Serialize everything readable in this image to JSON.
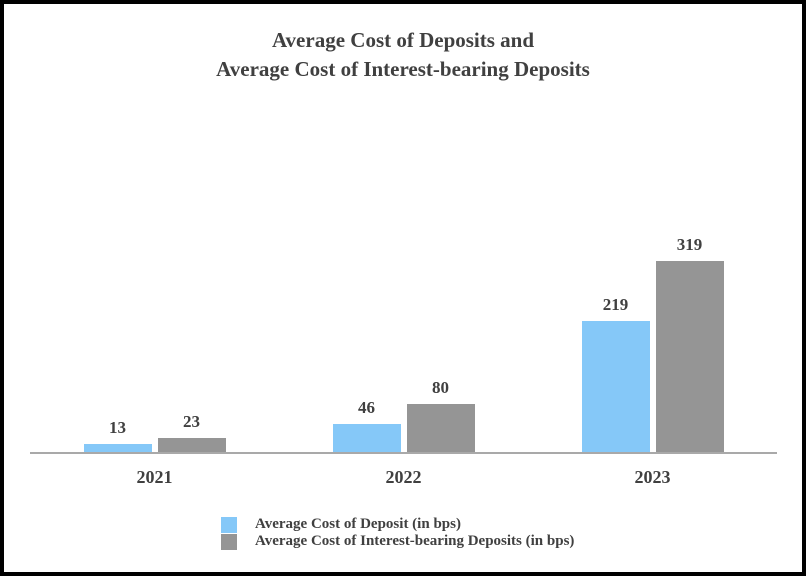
{
  "page": {
    "background": "#ffffff",
    "border_color": "#000000",
    "text_color": "#404040"
  },
  "chart_data": {
    "type": "bar",
    "title": "Average Cost of Deposits and Average Cost of Interest-bearing Deposits",
    "title_lines": [
      "Average Cost of Deposits and",
      "Average Cost of Interest-bearing Deposits"
    ],
    "categories": [
      "2021",
      "2022",
      "2023"
    ],
    "series": [
      {
        "key": "avg-cost-deposit",
        "name": "Average Cost of Deposit (in bps)",
        "color": "#85C8F8",
        "values": [
          13,
          46,
          219
        ]
      },
      {
        "key": "avg-cost-interest-bearing-deposits",
        "name": "Average Cost of Interest-bearing Deposits (in bps)",
        "color": "#959595",
        "values": [
          23,
          80,
          319
        ]
      }
    ],
    "ylim": [
      0,
      350
    ],
    "grid": false,
    "y_axis_visible": false,
    "legend_position": "bottom-left",
    "axis_line_color": "#A9A9A9",
    "label_color": "#404040"
  }
}
